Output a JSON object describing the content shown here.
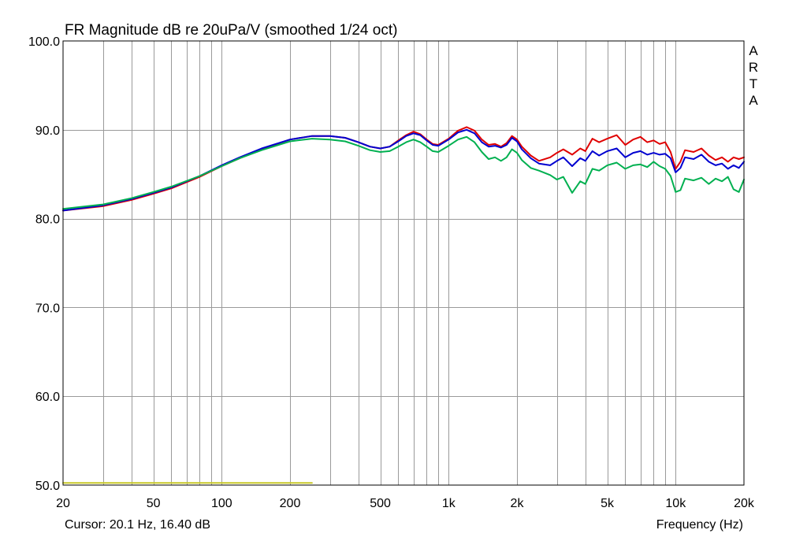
{
  "chart_data": {
    "type": "line",
    "title": "FR Magnitude dB re 20uPa/V (smoothed 1/24 oct)",
    "brand": "ARTA",
    "xlabel": "Frequency (Hz)",
    "ylabel": "",
    "xscale": "log",
    "xlim": [
      20,
      20000
    ],
    "ylim": [
      50,
      100
    ],
    "grid": true,
    "x_ticks": [
      {
        "value": 20,
        "label": "20"
      },
      {
        "value": 50,
        "label": "50"
      },
      {
        "value": 100,
        "label": "100"
      },
      {
        "value": 200,
        "label": "200"
      },
      {
        "value": 500,
        "label": "500"
      },
      {
        "value": 1000,
        "label": "1k"
      },
      {
        "value": 2000,
        "label": "2k"
      },
      {
        "value": 5000,
        "label": "5k"
      },
      {
        "value": 10000,
        "label": "10k"
      },
      {
        "value": 20000,
        "label": "20k"
      }
    ],
    "y_ticks": [
      {
        "value": 50,
        "label": "50.0"
      },
      {
        "value": 60,
        "label": "60.0"
      },
      {
        "value": 70,
        "label": "70.0"
      },
      {
        "value": 80,
        "label": "80.0"
      },
      {
        "value": 90,
        "label": "90.0"
      },
      {
        "value": 100,
        "label": "100.0"
      }
    ],
    "series": [
      {
        "color": "#e00000",
        "points": [
          [
            20,
            80.9
          ],
          [
            30,
            81.4
          ],
          [
            40,
            82.1
          ],
          [
            50,
            82.8
          ],
          [
            60,
            83.4
          ],
          [
            80,
            84.7
          ],
          [
            100,
            85.9
          ],
          [
            120,
            86.8
          ],
          [
            150,
            87.8
          ],
          [
            200,
            88.9
          ],
          [
            250,
            89.3
          ],
          [
            300,
            89.3
          ],
          [
            350,
            89.1
          ],
          [
            400,
            88.6
          ],
          [
            450,
            88.1
          ],
          [
            500,
            87.9
          ],
          [
            550,
            88.1
          ],
          [
            600,
            88.8
          ],
          [
            650,
            89.4
          ],
          [
            700,
            89.8
          ],
          [
            750,
            89.5
          ],
          [
            800,
            88.9
          ],
          [
            850,
            88.4
          ],
          [
            900,
            88.3
          ],
          [
            1000,
            89.0
          ],
          [
            1100,
            89.9
          ],
          [
            1200,
            90.3
          ],
          [
            1300,
            89.9
          ],
          [
            1400,
            88.9
          ],
          [
            1500,
            88.3
          ],
          [
            1600,
            88.4
          ],
          [
            1700,
            88.1
          ],
          [
            1800,
            88.5
          ],
          [
            1900,
            89.3
          ],
          [
            2000,
            88.9
          ],
          [
            2100,
            88.1
          ],
          [
            2300,
            87.1
          ],
          [
            2500,
            86.5
          ],
          [
            2800,
            86.9
          ],
          [
            3000,
            87.4
          ],
          [
            3200,
            87.8
          ],
          [
            3500,
            87.2
          ],
          [
            3800,
            87.9
          ],
          [
            4000,
            87.6
          ],
          [
            4300,
            89.0
          ],
          [
            4600,
            88.6
          ],
          [
            5000,
            89.0
          ],
          [
            5500,
            89.4
          ],
          [
            6000,
            88.3
          ],
          [
            6500,
            88.9
          ],
          [
            7000,
            89.2
          ],
          [
            7500,
            88.6
          ],
          [
            8000,
            88.8
          ],
          [
            8500,
            88.4
          ],
          [
            9000,
            88.6
          ],
          [
            9500,
            87.5
          ],
          [
            10000,
            85.6
          ],
          [
            10500,
            86.4
          ],
          [
            11000,
            87.7
          ],
          [
            12000,
            87.5
          ],
          [
            13000,
            87.9
          ],
          [
            14000,
            87.1
          ],
          [
            15000,
            86.6
          ],
          [
            16000,
            86.9
          ],
          [
            17000,
            86.4
          ],
          [
            18000,
            86.9
          ],
          [
            19000,
            86.7
          ],
          [
            20000,
            86.9
          ]
        ]
      },
      {
        "color": "#0000d0",
        "points": [
          [
            20,
            80.9
          ],
          [
            30,
            81.5
          ],
          [
            40,
            82.2
          ],
          [
            50,
            82.9
          ],
          [
            60,
            83.5
          ],
          [
            80,
            84.8
          ],
          [
            100,
            86.0
          ],
          [
            120,
            86.9
          ],
          [
            150,
            87.9
          ],
          [
            200,
            88.9
          ],
          [
            250,
            89.3
          ],
          [
            300,
            89.3
          ],
          [
            350,
            89.1
          ],
          [
            400,
            88.6
          ],
          [
            450,
            88.1
          ],
          [
            500,
            87.9
          ],
          [
            550,
            88.1
          ],
          [
            600,
            88.7
          ],
          [
            650,
            89.3
          ],
          [
            700,
            89.6
          ],
          [
            750,
            89.4
          ],
          [
            800,
            88.8
          ],
          [
            850,
            88.3
          ],
          [
            900,
            88.2
          ],
          [
            1000,
            88.9
          ],
          [
            1100,
            89.7
          ],
          [
            1200,
            90.0
          ],
          [
            1300,
            89.6
          ],
          [
            1400,
            88.6
          ],
          [
            1500,
            88.1
          ],
          [
            1600,
            88.2
          ],
          [
            1700,
            88.0
          ],
          [
            1800,
            88.3
          ],
          [
            1900,
            89.1
          ],
          [
            2000,
            88.7
          ],
          [
            2100,
            87.8
          ],
          [
            2300,
            86.8
          ],
          [
            2500,
            86.2
          ],
          [
            2800,
            86.0
          ],
          [
            3000,
            86.5
          ],
          [
            3200,
            86.9
          ],
          [
            3500,
            85.9
          ],
          [
            3800,
            86.8
          ],
          [
            4000,
            86.5
          ],
          [
            4300,
            87.6
          ],
          [
            4600,
            87.1
          ],
          [
            5000,
            87.6
          ],
          [
            5500,
            87.9
          ],
          [
            6000,
            86.9
          ],
          [
            6500,
            87.4
          ],
          [
            7000,
            87.6
          ],
          [
            7500,
            87.2
          ],
          [
            8000,
            87.4
          ],
          [
            8500,
            87.2
          ],
          [
            9000,
            87.3
          ],
          [
            9500,
            86.8
          ],
          [
            10000,
            85.2
          ],
          [
            10500,
            85.7
          ],
          [
            11000,
            86.9
          ],
          [
            12000,
            86.7
          ],
          [
            13000,
            87.2
          ],
          [
            14000,
            86.4
          ],
          [
            15000,
            86.0
          ],
          [
            16000,
            86.2
          ],
          [
            17000,
            85.6
          ],
          [
            18000,
            86.0
          ],
          [
            19000,
            85.7
          ],
          [
            20000,
            86.4
          ]
        ]
      },
      {
        "color": "#00b050",
        "points": [
          [
            20,
            81.1
          ],
          [
            30,
            81.6
          ],
          [
            40,
            82.3
          ],
          [
            50,
            83.0
          ],
          [
            60,
            83.6
          ],
          [
            80,
            84.8
          ],
          [
            100,
            85.9
          ],
          [
            120,
            86.8
          ],
          [
            150,
            87.7
          ],
          [
            200,
            88.7
          ],
          [
            250,
            89.0
          ],
          [
            300,
            88.9
          ],
          [
            350,
            88.7
          ],
          [
            400,
            88.2
          ],
          [
            450,
            87.7
          ],
          [
            500,
            87.5
          ],
          [
            550,
            87.6
          ],
          [
            600,
            88.1
          ],
          [
            650,
            88.6
          ],
          [
            700,
            88.9
          ],
          [
            750,
            88.6
          ],
          [
            800,
            88.1
          ],
          [
            850,
            87.6
          ],
          [
            900,
            87.5
          ],
          [
            1000,
            88.2
          ],
          [
            1100,
            88.9
          ],
          [
            1200,
            89.2
          ],
          [
            1300,
            88.6
          ],
          [
            1400,
            87.5
          ],
          [
            1500,
            86.7
          ],
          [
            1600,
            86.9
          ],
          [
            1700,
            86.5
          ],
          [
            1800,
            86.9
          ],
          [
            1900,
            87.8
          ],
          [
            2000,
            87.4
          ],
          [
            2100,
            86.6
          ],
          [
            2300,
            85.7
          ],
          [
            2500,
            85.4
          ],
          [
            2800,
            84.9
          ],
          [
            3000,
            84.4
          ],
          [
            3200,
            84.7
          ],
          [
            3500,
            82.9
          ],
          [
            3800,
            84.2
          ],
          [
            4000,
            83.9
          ],
          [
            4300,
            85.6
          ],
          [
            4600,
            85.4
          ],
          [
            5000,
            86.0
          ],
          [
            5500,
            86.3
          ],
          [
            6000,
            85.6
          ],
          [
            6500,
            86.0
          ],
          [
            7000,
            86.1
          ],
          [
            7500,
            85.8
          ],
          [
            8000,
            86.4
          ],
          [
            8500,
            85.9
          ],
          [
            9000,
            85.6
          ],
          [
            9500,
            84.8
          ],
          [
            10000,
            83.0
          ],
          [
            10500,
            83.2
          ],
          [
            11000,
            84.5
          ],
          [
            12000,
            84.3
          ],
          [
            13000,
            84.6
          ],
          [
            14000,
            83.9
          ],
          [
            15000,
            84.5
          ],
          [
            16000,
            84.2
          ],
          [
            17000,
            84.7
          ],
          [
            18000,
            83.3
          ],
          [
            19000,
            83.0
          ],
          [
            20000,
            84.4
          ]
        ]
      },
      {
        "color": "#c8c828",
        "points": [
          [
            20,
            50.25
          ],
          [
            250,
            50.25
          ]
        ]
      }
    ]
  },
  "cursor_text": "Cursor: 20.1 Hz, 16.40 dB"
}
